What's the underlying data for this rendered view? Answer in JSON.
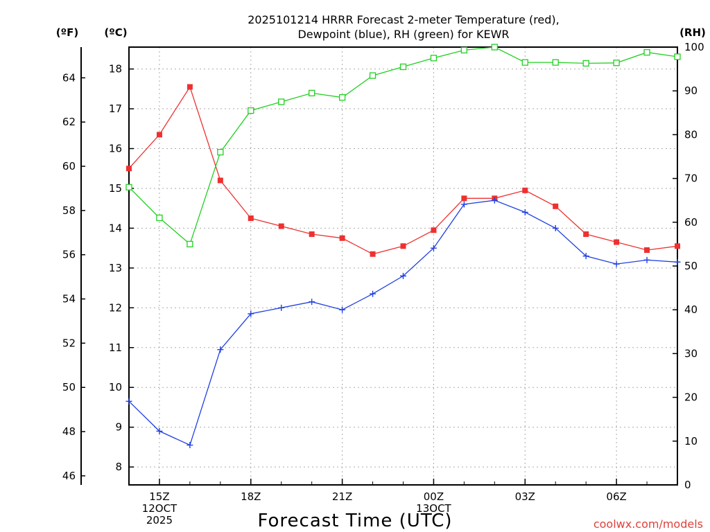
{
  "chart_data": {
    "type": "line",
    "title": [
      "2025101214 HRRR Forecast 2-meter Temperature (red),",
      "Dewpoint (blue), RH (green) for KEWR"
    ],
    "xlabel": "Forecast Time (UTC)",
    "axis_units": {
      "fahrenheit": "(ºF)",
      "celsius": "(ºC)",
      "rh": "(RH)"
    },
    "credit": "coolwx.com/models",
    "x_range_hours": [
      14,
      32
    ],
    "x_ticks": [
      {
        "hour": 15,
        "lines": [
          "15Z",
          "12OCT",
          "2025"
        ]
      },
      {
        "hour": 18,
        "lines": [
          "18Z"
        ]
      },
      {
        "hour": 21,
        "lines": [
          "21Z"
        ]
      },
      {
        "hour": 24,
        "lines": [
          "00Z",
          "13OCT"
        ]
      },
      {
        "hour": 27,
        "lines": [
          "03Z"
        ]
      },
      {
        "hour": 30,
        "lines": [
          "06Z"
        ]
      }
    ],
    "celsius_axis": {
      "range": [
        7.55,
        18.55
      ],
      "ticks": [
        8,
        9,
        10,
        11,
        12,
        13,
        14,
        15,
        16,
        17,
        18
      ]
    },
    "fahrenheit_ticks": [
      46,
      48,
      50,
      52,
      54,
      56,
      58,
      60,
      62,
      64
    ],
    "rh_axis": {
      "range": [
        0,
        100
      ],
      "ticks": [
        0,
        10,
        20,
        30,
        40,
        50,
        60,
        70,
        80,
        90,
        100
      ]
    },
    "x_hours": [
      14,
      15,
      16,
      17,
      18,
      19,
      20,
      21,
      22,
      23,
      24,
      25,
      26,
      27,
      28,
      29,
      30,
      31,
      32
    ],
    "series": [
      {
        "name": "Temperature",
        "axis": "celsius",
        "color": "#ee3030",
        "marker": "filled-square",
        "values": [
          15.5,
          16.35,
          17.55,
          15.2,
          14.25,
          14.05,
          13.85,
          13.75,
          13.35,
          13.55,
          13.95,
          14.75,
          14.75,
          14.95,
          14.55,
          13.85,
          13.65,
          13.45,
          13.55
        ]
      },
      {
        "name": "Dewpoint",
        "axis": "celsius",
        "color": "#2040e0",
        "marker": "plus",
        "values": [
          9.65,
          8.9,
          8.55,
          10.95,
          11.85,
          12.0,
          12.15,
          11.95,
          12.35,
          12.8,
          13.5,
          14.6,
          14.7,
          14.4,
          14.0,
          13.3,
          13.1,
          13.2,
          13.15
        ]
      },
      {
        "name": "RH",
        "axis": "rh",
        "color": "#20d020",
        "marker": "open-square",
        "values": [
          68,
          61,
          55,
          76,
          85.5,
          87.5,
          89.5,
          88.5,
          93.5,
          95.5,
          97.5,
          99.3,
          100,
          96.5,
          96.5,
          96.3,
          96.4,
          98.8,
          97.8
        ]
      }
    ]
  }
}
